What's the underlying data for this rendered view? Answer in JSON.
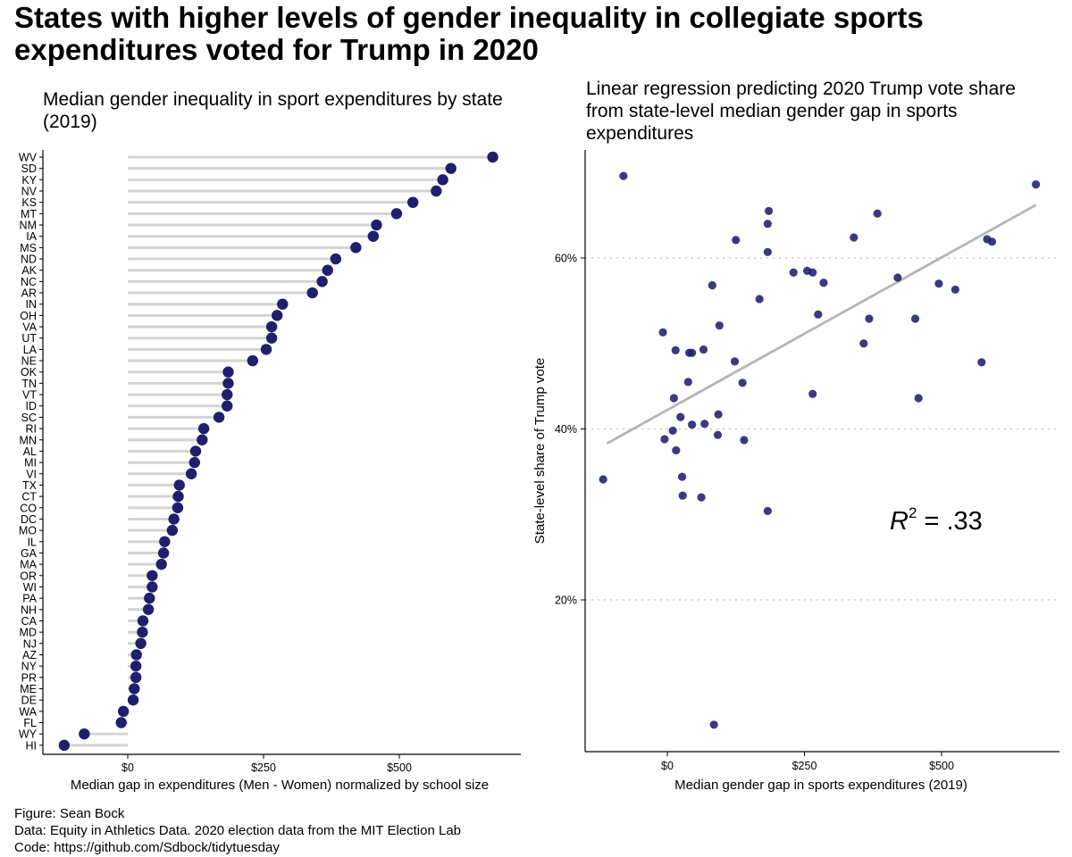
{
  "title": "States with higher levels of gender inequality in collegiate sports expenditures voted for Trump in 2020",
  "caption": [
    "Figure: Sean Bock",
    "Data: Equity in Athletics Data. 2020 election data from the MIT Election Lab",
    "Code: https://github.com/Sdbock/tidytuesday"
  ],
  "colors": {
    "point": "#1f1f6e",
    "segment": "#d3d3d3",
    "fit": "#b5b5b5",
    "grid": "#c0c0c0"
  },
  "chart_data": [
    {
      "type": "lollipop",
      "title": "Median gender inequality in sport expenditures by state (2019)",
      "xlabel": "Median gap in expenditures (Men - Women) normalized by school size",
      "ylabel": "",
      "xlim": [
        -125,
        680
      ],
      "xticks": [
        0,
        250,
        500
      ],
      "xtick_labels": [
        "$0",
        "$250",
        "$500"
      ],
      "categories": [
        "WV",
        "SD",
        "KY",
        "NV",
        "KS",
        "MT",
        "NM",
        "IA",
        "MS",
        "ND",
        "AK",
        "NC",
        "AR",
        "IN",
        "OH",
        "VA",
        "UT",
        "LA",
        "NE",
        "OK",
        "TN",
        "VT",
        "ID",
        "SC",
        "RI",
        "MN",
        "AL",
        "MI",
        "VI",
        "TX",
        "CT",
        "CO",
        "DC",
        "MO",
        "IL",
        "GA",
        "MA",
        "OR",
        "WI",
        "PA",
        "NH",
        "CA",
        "MD",
        "NJ",
        "AZ",
        "NY",
        "PR",
        "ME",
        "DE",
        "WA",
        "FL",
        "WY",
        "HI"
      ],
      "values": [
        672,
        595,
        580,
        568,
        525,
        495,
        458,
        452,
        420,
        383,
        368,
        358,
        340,
        285,
        275,
        265,
        265,
        255,
        230,
        185,
        185,
        183,
        183,
        168,
        140,
        137,
        125,
        123,
        117,
        95,
        93,
        92,
        85,
        82,
        68,
        66,
        62,
        45,
        45,
        40,
        38,
        28,
        27,
        24,
        16,
        15,
        15,
        12,
        10,
        -8,
        -12,
        -80,
        -117
      ]
    },
    {
      "type": "scatter",
      "title": "Linear regression predicting 2020 Trump vote share from state-level median gender gap in sports expenditures",
      "xlabel": "Median gender gap in sports expenditures (2019)",
      "ylabel": "State-level share of Trump vote",
      "xlim": [
        -150,
        700
      ],
      "ylim": [
        2,
        72
      ],
      "xticks": [
        0,
        250,
        500
      ],
      "xtick_labels": [
        "$0",
        "$250",
        "$500"
      ],
      "yticks": [
        20,
        40,
        60
      ],
      "ytick_labels": [
        "20%",
        "40%",
        "60%"
      ],
      "grid": "horizontal dotted",
      "annotation": {
        "base": "R",
        "superscript": "2",
        "rest": " = .33"
      },
      "fit_line": {
        "x": [
          -110,
          672
        ],
        "y": [
          38.3,
          66.2
        ]
      },
      "points": [
        {
          "x": -80,
          "y": 69.6
        },
        {
          "x": -117,
          "y": 34.1
        },
        {
          "x": 672,
          "y": 68.6
        },
        {
          "x": 592,
          "y": 61.9
        },
        {
          "x": 583,
          "y": 62.2
        },
        {
          "x": 573,
          "y": 47.8
        },
        {
          "x": 525,
          "y": 56.3
        },
        {
          "x": 495,
          "y": 57.0
        },
        {
          "x": 458,
          "y": 43.6
        },
        {
          "x": 452,
          "y": 52.9
        },
        {
          "x": 420,
          "y": 57.7
        },
        {
          "x": 383,
          "y": 65.2
        },
        {
          "x": 368,
          "y": 52.9
        },
        {
          "x": 358,
          "y": 50.0
        },
        {
          "x": 340,
          "y": 62.4
        },
        {
          "x": 285,
          "y": 57.1
        },
        {
          "x": 275,
          "y": 53.4
        },
        {
          "x": 265,
          "y": 44.1
        },
        {
          "x": 265,
          "y": 58.3
        },
        {
          "x": 255,
          "y": 58.5
        },
        {
          "x": 230,
          "y": 58.3
        },
        {
          "x": 185,
          "y": 65.5
        },
        {
          "x": 183,
          "y": 64.0
        },
        {
          "x": 183,
          "y": 60.7
        },
        {
          "x": 183,
          "y": 30.4
        },
        {
          "x": 168,
          "y": 55.2
        },
        {
          "x": 140,
          "y": 38.7
        },
        {
          "x": 137,
          "y": 45.4
        },
        {
          "x": 125,
          "y": 62.1
        },
        {
          "x": 123,
          "y": 47.9
        },
        {
          "x": 95,
          "y": 52.1
        },
        {
          "x": 93,
          "y": 41.7
        },
        {
          "x": 92,
          "y": 39.3
        },
        {
          "x": 85,
          "y": 5.4
        },
        {
          "x": 82,
          "y": 56.8
        },
        {
          "x": 68,
          "y": 40.6
        },
        {
          "x": 66,
          "y": 49.3
        },
        {
          "x": 62,
          "y": 32.0
        },
        {
          "x": 45,
          "y": 40.5
        },
        {
          "x": 45,
          "y": 48.9
        },
        {
          "x": 40,
          "y": 48.9
        },
        {
          "x": 38,
          "y": 45.5
        },
        {
          "x": 28,
          "y": 32.2
        },
        {
          "x": 27,
          "y": 34.4
        },
        {
          "x": 24,
          "y": 41.4
        },
        {
          "x": 16,
          "y": 37.5
        },
        {
          "x": 15,
          "y": 49.2
        },
        {
          "x": 12,
          "y": 43.6
        },
        {
          "x": 10,
          "y": 39.8
        },
        {
          "x": -8,
          "y": 51.3
        },
        {
          "x": -5,
          "y": 38.8
        }
      ]
    }
  ]
}
